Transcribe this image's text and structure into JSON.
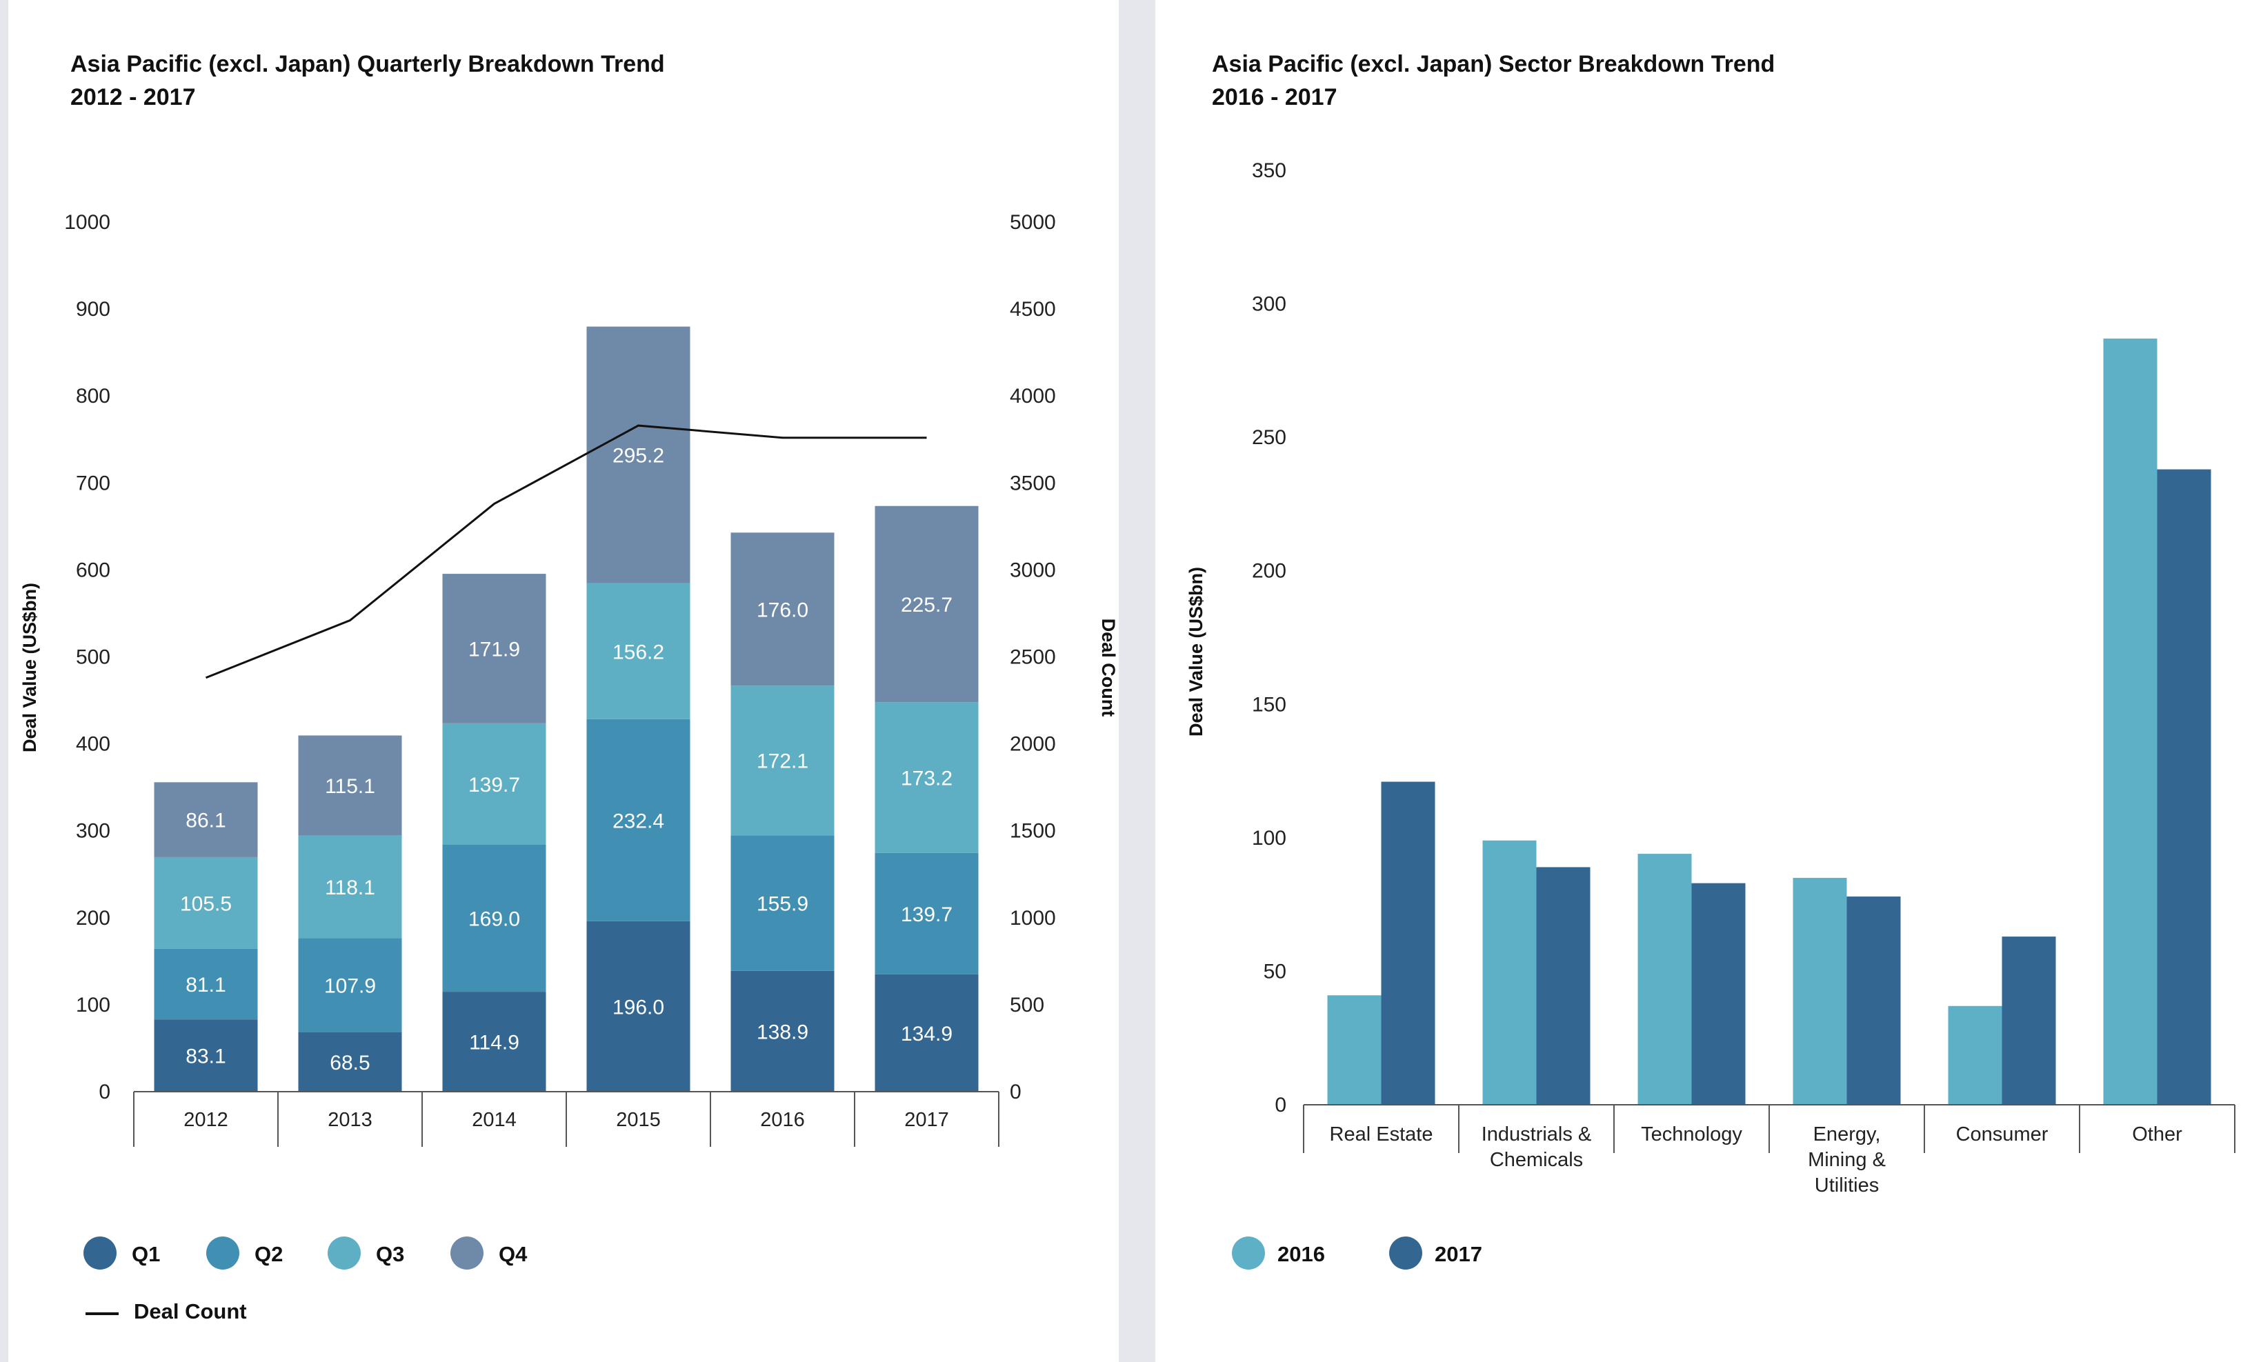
{
  "chart_data": [
    {
      "type": "bar",
      "stacked": true,
      "title": "Asia Pacific (excl. Japan) Quarterly Breakdown Trend",
      "subtitle": "2012 - 2017",
      "categories": [
        "2012",
        "2013",
        "2014",
        "2015",
        "2016",
        "2017"
      ],
      "series": [
        {
          "name": "Q1",
          "color": "#336690",
          "values": [
            83.1,
            68.5,
            114.9,
            196.0,
            138.9,
            134.9
          ]
        },
        {
          "name": "Q2",
          "color": "#418fb3",
          "values": [
            81.1,
            107.9,
            169.0,
            232.4,
            155.9,
            139.7
          ]
        },
        {
          "name": "Q3",
          "color": "#5eafc4",
          "values": [
            105.5,
            118.1,
            139.7,
            156.2,
            172.1,
            173.2
          ]
        },
        {
          "name": "Q4",
          "color": "#6f89a8",
          "values": [
            86.1,
            115.1,
            171.9,
            295.2,
            176.0,
            225.7
          ]
        }
      ],
      "value_labels": [
        [
          "83.1",
          "68.5",
          "114.9",
          "196.0",
          "138.9",
          "134.9"
        ],
        [
          "81.1",
          "107.9",
          "169.0",
          "232.4",
          "155.9",
          "139.7"
        ],
        [
          "105.5",
          "118.1",
          "139.7",
          "156.2",
          "172.1",
          "173.2"
        ],
        [
          "86.1",
          "115.1",
          "171.9",
          "295.2",
          "176.0",
          "225.7"
        ]
      ],
      "line_series": {
        "name": "Deal Count",
        "color": "#111111",
        "axis": "right",
        "values": [
          2380,
          2710,
          3380,
          3830,
          3760,
          3760
        ]
      },
      "ylabel": "Deal Value (US$bn)",
      "ylabel_right": "Deal Count",
      "ylim": [
        0,
        1000
      ],
      "ylim_right": [
        0,
        5000
      ],
      "yticks": [
        "0",
        "100",
        "200",
        "300",
        "400",
        "500",
        "600",
        "700",
        "800",
        "900",
        "1000"
      ],
      "yticks_right": [
        "0",
        "500",
        "1000",
        "1500",
        "2000",
        "2500",
        "3000",
        "3500",
        "4000",
        "4500",
        "5000"
      ],
      "grid": false,
      "legend": "bottom-left"
    },
    {
      "type": "bar",
      "title": "Asia Pacific (excl. Japan) Sector Breakdown Trend",
      "subtitle": "2016 - 2017",
      "categories": [
        [
          "Real Estate"
        ],
        [
          "Industrials &",
          "Chemicals"
        ],
        [
          "Technology"
        ],
        [
          "Energy,",
          "Mining &",
          "Utilities"
        ],
        [
          "Consumer"
        ],
        [
          "Other"
        ]
      ],
      "series": [
        {
          "name": "2016",
          "color": "#5eb0c6",
          "values": [
            41,
            99,
            94,
            85,
            37,
            287
          ]
        },
        {
          "name": "2017",
          "color": "#336690",
          "values": [
            121,
            89,
            83,
            78,
            63,
            238
          ]
        }
      ],
      "ylabel": "Deal Value (US$bn)",
      "ylim": [
        0,
        350
      ],
      "yticks": [
        "0",
        "50",
        "100",
        "150",
        "200",
        "250",
        "300",
        "350"
      ],
      "grid": false,
      "legend": "bottom-left"
    }
  ]
}
